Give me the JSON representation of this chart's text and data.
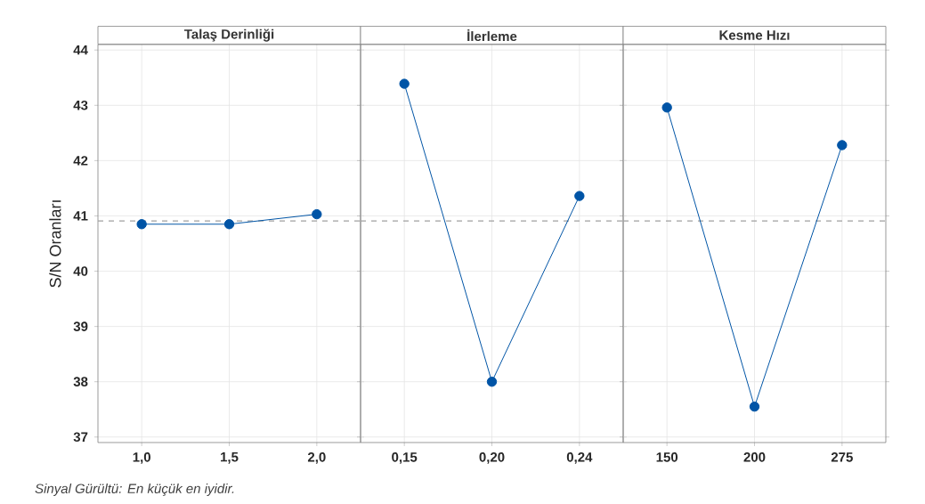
{
  "chart_data": [
    {
      "type": "line",
      "title": "Talaş Derinliği",
      "ylabel": "S/N Oranları",
      "categories": [
        "1,0",
        "1,5",
        "2,0"
      ],
      "values": [
        40.85,
        40.85,
        41.03
      ],
      "color": "#0054a6",
      "marker": "circle",
      "line_style": "solid",
      "grid": true,
      "ylim": [
        36.9,
        44.1
      ],
      "yticks": [
        37,
        38,
        39,
        40,
        41,
        42,
        43,
        44
      ],
      "ref_lines": [
        {
          "axis": "y",
          "value": 40.91,
          "color": "#a0a0a0",
          "line_style": "dashed"
        }
      ],
      "annotations": [
        "Sinyal Gürültü: En küçük en iyidir."
      ]
    },
    {
      "type": "line",
      "title": "İlerleme",
      "categories": [
        "0,15",
        "0,20",
        "0,24"
      ],
      "values": [
        43.39,
        38.0,
        41.36
      ],
      "color": "#0054a6",
      "marker": "circle",
      "line_style": "solid",
      "grid": true,
      "ylim": [
        36.9,
        44.1
      ],
      "yticks": [
        37,
        38,
        39,
        40,
        41,
        42,
        43,
        44
      ],
      "tick_labels": "x",
      "ref_lines": [
        {
          "axis": "y",
          "value": 40.91,
          "color": "#a0a0a0",
          "line_style": "dashed"
        }
      ]
    },
    {
      "type": "line",
      "title": "Kesme Hızı",
      "categories": [
        "150",
        "200",
        "275"
      ],
      "values": [
        42.96,
        37.55,
        42.28
      ],
      "color": "#0054a6",
      "marker": "circle",
      "line_style": "solid",
      "grid": true,
      "ylim": [
        36.9,
        44.1
      ],
      "yticks": [
        37,
        38,
        39,
        40,
        41,
        42,
        43,
        44
      ],
      "tick_labels": "x",
      "ref_lines": [
        {
          "axis": "y",
          "value": 40.91,
          "color": "#a0a0a0",
          "line_style": "dashed"
        }
      ]
    }
  ]
}
